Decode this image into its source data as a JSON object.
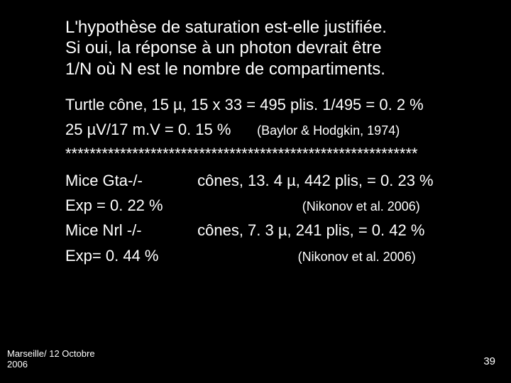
{
  "colors": {
    "background": "#000000",
    "text": "#ffffff"
  },
  "typography": {
    "family": "Comic Sans MS",
    "question_size_pt": 24,
    "body_size_pt": 22,
    "cite_size_pt": 18,
    "footer_size_pt": 13
  },
  "question": {
    "l1": "L'hypothèse de saturation est-elle justifiée.",
    "l2": "Si oui, la réponse à un photon devrait être",
    "l3": "1/N où N est le nombre de compartiments."
  },
  "body": {
    "turtle": "Turtle cône, 15 µ, 15 x 33 = 495 plis. 1/495 = 0. 2 %",
    "calc": "25 µV/17 m.V = 0. 15 %",
    "cite1": "(Baylor & Hodgkin, 1974)",
    "asterisks": "**********************************************************",
    "mice_gta_label": "Mice Gta-/-",
    "mice_gta_val": "cônes, 13. 4 µ, 442 plis, = 0. 23 %",
    "exp1": "Exp = 0. 22 %",
    "cite2": "(Nikonov et al. 2006)",
    "mice_nrl_label": "Mice Nrl -/-",
    "mice_nrl_val": "cônes, 7. 3 µ, 241 plis, = 0. 42 %",
    "exp2": "Exp= 0. 44 %",
    "cite3": "(Nikonov et al. 2006)"
  },
  "footer": {
    "left_l1": "Marseille/ 12 Octobre",
    "left_l2": "2006",
    "page": "39"
  }
}
